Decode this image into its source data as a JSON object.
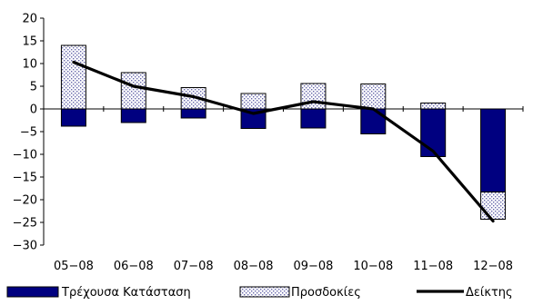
{
  "chart_data": {
    "type": "bar",
    "stacked": true,
    "categories": [
      "05-08",
      "06-08",
      "07-08",
      "08-08",
      "09-08",
      "10-08",
      "11-08",
      "12-08"
    ],
    "series": [
      {
        "name": "Τρέχουσα Κατάσταση",
        "kind": "bar",
        "fill": "solid",
        "color": "#000080",
        "values": [
          -3.8,
          -3.0,
          -2.0,
          -4.3,
          -4.2,
          -5.5,
          -10.5,
          -18.3
        ]
      },
      {
        "name": "Προσδοκίες",
        "kind": "bar",
        "fill": "dotted",
        "color": "#9999cc",
        "values": [
          14.0,
          8.0,
          4.7,
          3.4,
          5.6,
          5.5,
          1.3,
          -6.0
        ]
      },
      {
        "name": "Δείκτης",
        "kind": "line",
        "color": "#000000",
        "values": [
          10.3,
          5.0,
          2.7,
          -1.0,
          1.6,
          0.0,
          -9.3,
          -24.7
        ]
      }
    ],
    "ylim": [
      -30,
      20
    ],
    "yticks": [
      20,
      15,
      10,
      5,
      0,
      -5,
      -10,
      -15,
      -20,
      -25,
      -30
    ],
    "grid": false,
    "legend_position": "bottom",
    "xlabel": "",
    "ylabel": "",
    "title": ""
  }
}
